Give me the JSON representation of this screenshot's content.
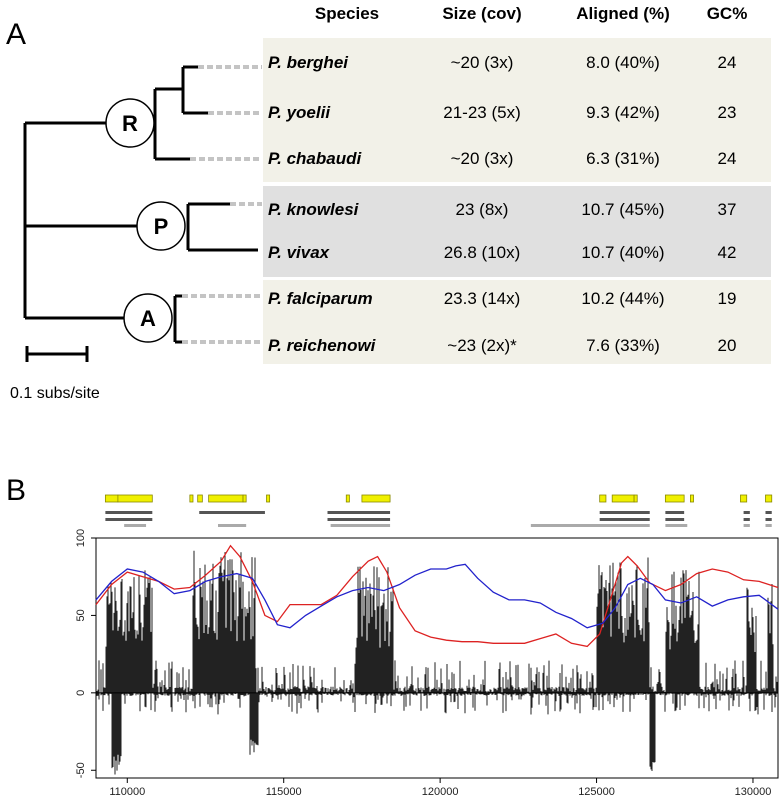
{
  "panel_a": {
    "label": "A",
    "table": {
      "headers": [
        "Species",
        "Size (cov)",
        "Aligned (%)",
        "GC%"
      ],
      "rows": [
        {
          "species": "P. berghei",
          "size": "~20 (3x)",
          "aligned": "8.0 (40%)",
          "gc": "24"
        },
        {
          "species": "P. yoelii",
          "size": "21-23 (5x)",
          "aligned": "9.3 (42%)",
          "gc": "23"
        },
        {
          "species": "P. chabaudi",
          "size": "~20 (3x)",
          "aligned": "6.3 (31%)",
          "gc": "24"
        },
        {
          "species": "P. knowlesi",
          "size": "23 (8x)",
          "aligned": "10.7 (45%)",
          "gc": "37"
        },
        {
          "species": "P. vivax",
          "size": "26.8 (10x)",
          "aligned": "10.7 (40%)",
          "gc": "42"
        },
        {
          "species": "P. falciparum",
          "size": "23.3 (14x)",
          "aligned": "10.2 (44%)",
          "gc": "19"
        },
        {
          "species": "P. reichenowi",
          "size": "~23 (2x)*",
          "aligned": "7.6 (33%)",
          "gc": "20"
        }
      ],
      "group_colors": [
        "#f2f1e8",
        "#e0e0e0",
        "#f2f1e8"
      ]
    },
    "tree": {
      "nodes": [
        "R",
        "P",
        "A"
      ],
      "scale_label": "0.1 subs/site"
    }
  },
  "panel_b": {
    "label": "B",
    "chart_data": {
      "type": "area",
      "x_ticks": [
        "110000",
        "115000",
        "120000",
        "125000",
        "130000"
      ],
      "y_ticks": [
        "100",
        "50",
        "0",
        "-50"
      ],
      "xlim": [
        109000,
        130800
      ],
      "ylim": [
        -55,
        100
      ],
      "series": [
        {
          "color": "#dd2222",
          "x": [
            109000,
            109500,
            110000,
            110500,
            111000,
            111500,
            112000,
            112500,
            113000,
            113300,
            113600,
            114000,
            114400,
            114800,
            115200,
            115700,
            116200,
            116700,
            117200,
            117700,
            118000,
            118300,
            118700,
            119200,
            119700,
            120200,
            120700,
            121200,
            121700,
            122200,
            122700,
            123200,
            123700,
            124200,
            124700,
            125100,
            125500,
            125800,
            126000,
            126300,
            126700,
            127200,
            127700,
            128200,
            128700,
            129200,
            129700,
            130200,
            130800
          ],
          "values": [
            57,
            70,
            78,
            75,
            72,
            67,
            68,
            76,
            85,
            95,
            88,
            72,
            50,
            46,
            57,
            57,
            57,
            63,
            75,
            85,
            88,
            78,
            55,
            40,
            36,
            34,
            33,
            33,
            32,
            32,
            32,
            35,
            38,
            32,
            30,
            38,
            64,
            84,
            88,
            82,
            71,
            66,
            70,
            77,
            80,
            78,
            73,
            72,
            68
          ]
        },
        {
          "color": "#2222cc",
          "x": [
            109000,
            109500,
            110000,
            110500,
            111000,
            111500,
            112000,
            112500,
            113000,
            113500,
            114000,
            114400,
            114800,
            115200,
            115700,
            116200,
            116700,
            117200,
            117700,
            118200,
            118700,
            119200,
            119700,
            120200,
            120500,
            120800,
            121200,
            121700,
            122200,
            122700,
            123200,
            123700,
            124200,
            124700,
            125200,
            125600,
            126000,
            126400,
            126800,
            127200,
            127700,
            128200,
            128700,
            129200,
            129700,
            130200,
            130800
          ],
          "values": [
            60,
            72,
            80,
            78,
            72,
            64,
            66,
            72,
            75,
            77,
            74,
            60,
            44,
            42,
            50,
            56,
            62,
            66,
            68,
            66,
            70,
            76,
            80,
            80,
            82,
            83,
            74,
            65,
            60,
            60,
            58,
            52,
            48,
            42,
            45,
            55,
            70,
            74,
            70,
            60,
            58,
            62,
            56,
            60,
            62,
            63,
            54
          ]
        }
      ]
    },
    "annotations": {
      "genes": [
        [
          109300,
          109700
        ],
        [
          109700,
          110800
        ],
        [
          112000,
          112100
        ],
        [
          112250,
          112400
        ],
        [
          112600,
          113700
        ],
        [
          113700,
          113800
        ],
        [
          114450,
          114550
        ],
        [
          117000,
          117100
        ],
        [
          117500,
          118400
        ],
        [
          125100,
          125300
        ],
        [
          125500,
          126200
        ],
        [
          126200,
          126300
        ],
        [
          127200,
          127800
        ],
        [
          128000,
          128100
        ],
        [
          129600,
          129800
        ],
        [
          130400,
          130600
        ]
      ],
      "dark_lines": [
        [
          109300,
          110800
        ],
        [
          109300,
          110800
        ],
        [
          112300,
          114400
        ],
        [
          116400,
          118400
        ],
        [
          116400,
          118400
        ],
        [
          125100,
          126700
        ],
        [
          125100,
          126700
        ],
        [
          127200,
          127800
        ],
        [
          127200,
          127800
        ],
        [
          129700,
          129900
        ],
        [
          129700,
          129900
        ],
        [
          130400,
          130600
        ],
        [
          130400,
          130600
        ]
      ],
      "light_lines": [
        [
          109900,
          110600
        ],
        [
          112900,
          113800
        ],
        [
          116500,
          118400
        ],
        [
          122900,
          126700
        ],
        [
          127200,
          127900
        ],
        [
          129700,
          129900
        ],
        [
          130400,
          130600
        ]
      ]
    }
  }
}
